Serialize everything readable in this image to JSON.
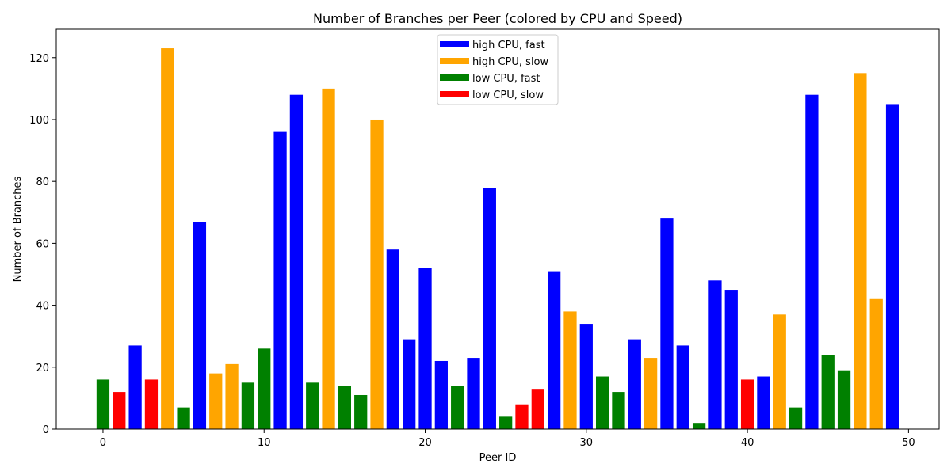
{
  "chart_data": {
    "type": "bar",
    "title": "Number of Branches per Peer (colored by CPU and Speed)",
    "xlabel": "Peer ID",
    "ylabel": "Number of Branches",
    "xlim": [
      -2.9,
      51.9
    ],
    "ylim": [
      0,
      129.15
    ],
    "xticks": [
      0,
      10,
      20,
      30,
      40,
      50
    ],
    "yticks": [
      0,
      20,
      40,
      60,
      80,
      100,
      120
    ],
    "grid": false,
    "legend_position": "upper center",
    "categories_legend": [
      {
        "name": "high CPU, fast",
        "color": "#0000ff"
      },
      {
        "name": "high CPU, slow",
        "color": "#ffa500"
      },
      {
        "name": "low CPU, fast",
        "color": "#008000"
      },
      {
        "name": "low CPU, slow",
        "color": "#ff0000"
      }
    ],
    "x": [
      0,
      1,
      2,
      3,
      4,
      5,
      6,
      7,
      8,
      9,
      10,
      11,
      12,
      13,
      14,
      15,
      16,
      17,
      18,
      19,
      20,
      21,
      22,
      23,
      24,
      25,
      26,
      27,
      28,
      29,
      30,
      31,
      32,
      33,
      34,
      35,
      36,
      37,
      38,
      39,
      40,
      41,
      42,
      43,
      44,
      45,
      46,
      47,
      48,
      49
    ],
    "values": [
      16,
      12,
      27,
      16,
      123,
      7,
      67,
      18,
      21,
      15,
      26,
      96,
      108,
      15,
      110,
      14,
      11,
      100,
      58,
      29,
      52,
      22,
      14,
      23,
      78,
      4,
      8,
      13,
      51,
      38,
      34,
      17,
      12,
      29,
      23,
      68,
      27,
      2,
      48,
      45,
      16,
      17,
      37,
      7,
      108,
      24,
      19,
      115,
      42,
      105
    ],
    "bar_category": [
      "low CPU, fast",
      "low CPU, slow",
      "high CPU, fast",
      "low CPU, slow",
      "high CPU, slow",
      "low CPU, fast",
      "high CPU, fast",
      "high CPU, slow",
      "high CPU, slow",
      "low CPU, fast",
      "low CPU, fast",
      "high CPU, fast",
      "high CPU, fast",
      "low CPU, fast",
      "high CPU, slow",
      "low CPU, fast",
      "low CPU, fast",
      "high CPU, slow",
      "high CPU, fast",
      "high CPU, fast",
      "high CPU, fast",
      "high CPU, fast",
      "low CPU, fast",
      "high CPU, fast",
      "high CPU, fast",
      "low CPU, fast",
      "low CPU, slow",
      "low CPU, slow",
      "high CPU, fast",
      "high CPU, slow",
      "high CPU, fast",
      "low CPU, fast",
      "low CPU, fast",
      "high CPU, fast",
      "high CPU, slow",
      "high CPU, fast",
      "high CPU, fast",
      "low CPU, fast",
      "high CPU, fast",
      "high CPU, fast",
      "low CPU, slow",
      "high CPU, fast",
      "high CPU, slow",
      "low CPU, fast",
      "high CPU, fast",
      "low CPU, fast",
      "low CPU, fast",
      "high CPU, slow",
      "high CPU, slow",
      "high CPU, fast"
    ]
  }
}
